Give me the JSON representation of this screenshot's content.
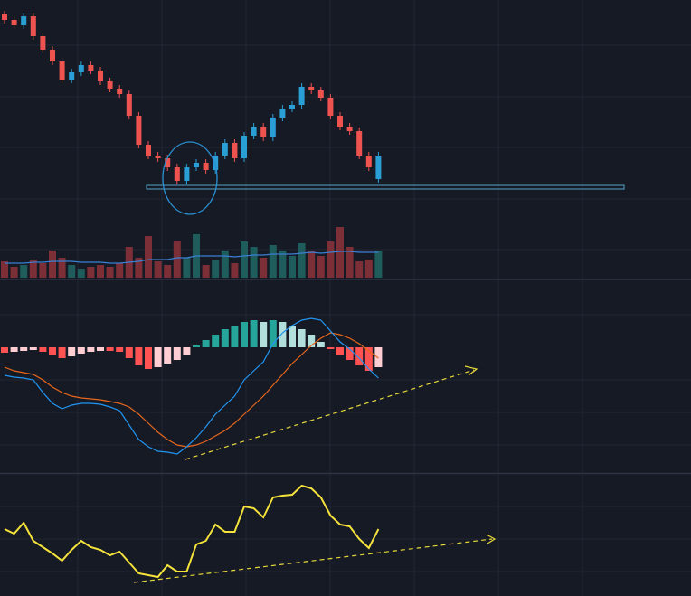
{
  "chart_data": [
    {
      "type": "candlestick",
      "open": [
        204,
        198,
        192,
        202,
        180,
        165,
        152,
        132,
        140,
        148,
        142,
        130,
        122,
        116,
        92,
        60,
        48,
        45,
        35,
        20,
        35,
        40,
        32,
        48,
        62,
        45,
        70,
        80,
        68,
        90,
        100,
        104,
        124,
        120,
        112,
        92,
        80,
        75,
        48,
        22
      ],
      "high": [
        208,
        202,
        206,
        206,
        184,
        169,
        156,
        144,
        152,
        152,
        146,
        134,
        126,
        120,
        96,
        64,
        52,
        49,
        39,
        39,
        44,
        44,
        52,
        66,
        66,
        74,
        84,
        84,
        94,
        104,
        108,
        128,
        128,
        124,
        116,
        96,
        84,
        79,
        52,
        52
      ],
      "low": [
        194,
        188,
        188,
        176,
        161,
        148,
        128,
        128,
        136,
        138,
        126,
        118,
        112,
        88,
        56,
        44,
        41,
        31,
        16,
        16,
        31,
        28,
        28,
        44,
        41,
        41,
        66,
        64,
        64,
        86,
        96,
        100,
        116,
        108,
        88,
        76,
        71,
        44,
        31,
        18
      ],
      "close": [
        198,
        192,
        202,
        180,
        165,
        152,
        132,
        140,
        148,
        142,
        130,
        122,
        116,
        92,
        60,
        48,
        45,
        35,
        20,
        35,
        40,
        32,
        48,
        62,
        45,
        70,
        80,
        68,
        90,
        100,
        104,
        124,
        120,
        112,
        92,
        80,
        75,
        48,
        35,
        48
      ],
      "ylim": [
        0,
        220
      ],
      "hline": 13,
      "hline_color": "#4a8fb0",
      "up_color": "#2a9fd6",
      "down_color": "#ef5350"
    },
    {
      "type": "volume",
      "values": [
        18,
        12,
        14,
        20,
        16,
        30,
        22,
        14,
        10,
        12,
        14,
        12,
        16,
        34,
        22,
        46,
        18,
        14,
        40,
        22,
        48,
        14,
        20,
        30,
        16,
        40,
        34,
        22,
        36,
        30,
        24,
        38,
        30,
        24,
        40,
        56,
        34,
        18,
        20,
        30
      ],
      "ma": [
        16,
        16,
        16,
        17,
        17,
        18,
        18,
        18,
        17,
        17,
        17,
        16,
        16,
        17,
        18,
        20,
        20,
        20,
        22,
        22,
        24,
        24,
        24,
        24,
        23,
        24,
        25,
        25,
        26,
        26,
        26,
        27,
        28,
        27,
        28,
        29,
        29,
        28,
        28,
        28
      ],
      "ylim": [
        0,
        60
      ],
      "up_color": "#1f5d5c",
      "down_color": "#7c2f36",
      "ma_color": "#3b7fd4"
    },
    {
      "type": "macd",
      "hist": [
        -6,
        -5,
        -4,
        -3,
        -5,
        -8,
        -12,
        -10,
        -7,
        -5,
        -4,
        -4,
        -5,
        -12,
        -20,
        -24,
        -22,
        -18,
        -14,
        -8,
        2,
        8,
        14,
        20,
        24,
        28,
        30,
        28,
        30,
        28,
        24,
        20,
        14,
        6,
        -2,
        -8,
        -14,
        -20,
        -26,
        -22
      ],
      "dif": [
        -31,
        -33,
        -34,
        -36,
        -50,
        -62,
        -68,
        -64,
        -62,
        -62,
        -63,
        -66,
        -70,
        -86,
        -102,
        -110,
        -115,
        -116,
        -118,
        -110,
        -100,
        -88,
        -74,
        -64,
        -54,
        -36,
        -26,
        -16,
        4,
        16,
        24,
        30,
        32,
        30,
        18,
        6,
        -2,
        -12,
        -24,
        -34
      ],
      "dea": [
        -22,
        -26,
        -28,
        -30,
        -36,
        -44,
        -50,
        -54,
        -56,
        -57,
        -58,
        -60,
        -62,
        -66,
        -74,
        -84,
        -94,
        -102,
        -108,
        -110,
        -108,
        -104,
        -98,
        -92,
        -84,
        -74,
        -64,
        -54,
        -42,
        -30,
        -18,
        -8,
        2,
        10,
        16,
        14,
        10,
        4,
        -4,
        -12
      ],
      "ylim": [
        -139,
        72
      ],
      "pos_grow": "#26a69a",
      "pos_fall": "#b2dfdb",
      "neg_grow": "#ff5252",
      "neg_fall": "#ffcdd2",
      "dif_color": "#2196f3",
      "dea_color": "#e8671c"
    },
    {
      "type": "line",
      "values": [
        74,
        69,
        81,
        61,
        54,
        47,
        39,
        51,
        61,
        54,
        51,
        45,
        49,
        37,
        25,
        23,
        21,
        34,
        27,
        27,
        57,
        61,
        79,
        71,
        71,
        99,
        97,
        87,
        109,
        111,
        112,
        122,
        119,
        109,
        89,
        79,
        77,
        63,
        53,
        74
      ],
      "ylim": [
        0,
        135
      ],
      "color": "#f5e33b"
    }
  ]
}
